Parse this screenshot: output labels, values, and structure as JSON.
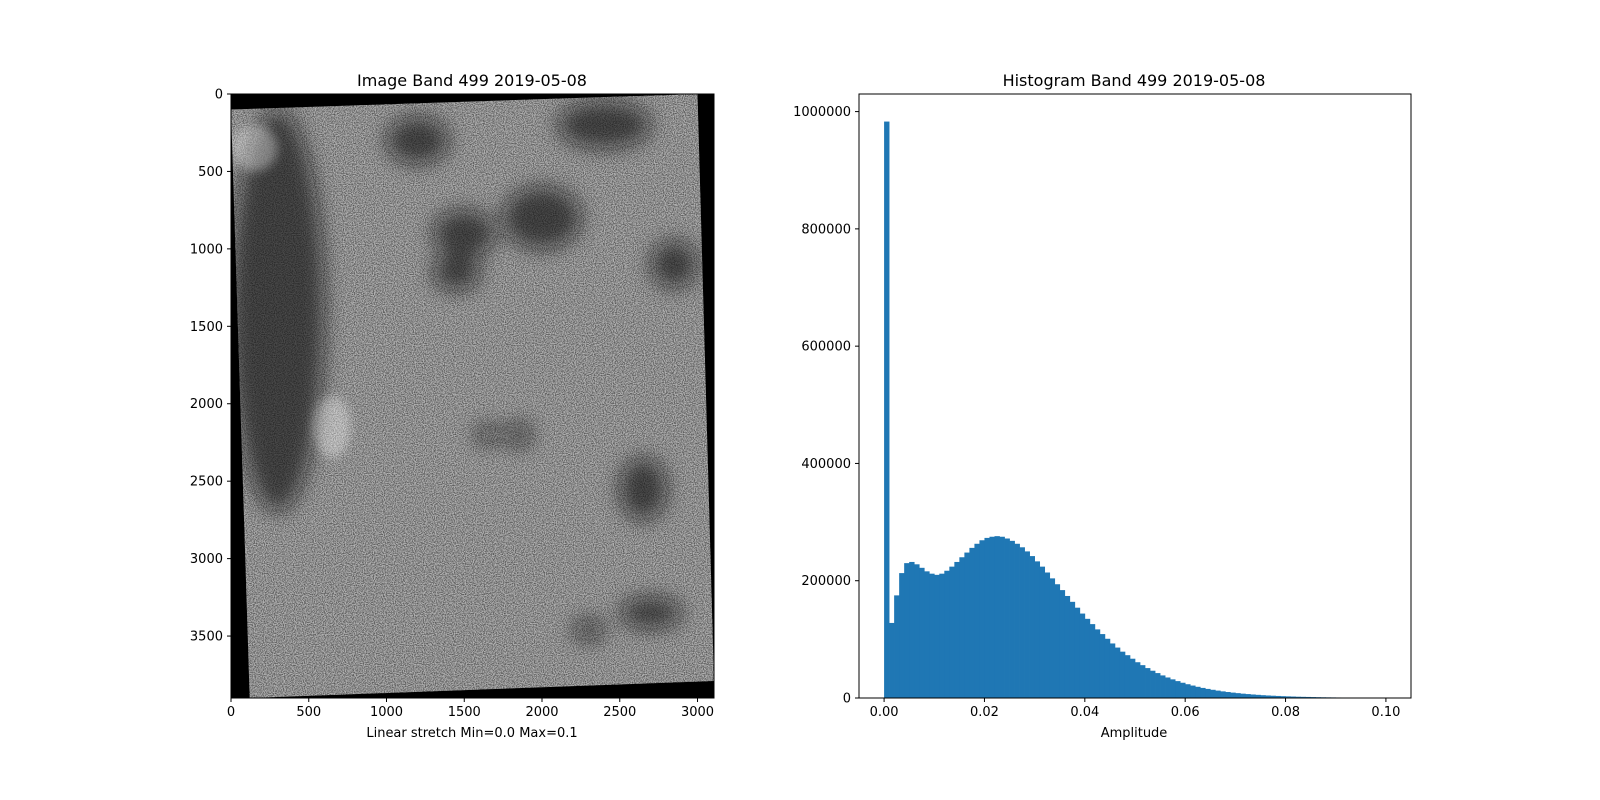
{
  "figure": {
    "background": "#ffffff"
  },
  "chart_data": [
    {
      "type": "heatmap",
      "title": "Image Band 499 2019-05-08",
      "xlabel": "Linear stretch Min=0.0 Max=0.1",
      "ylabel": "",
      "xlim": [
        0,
        3106
      ],
      "ylim": [
        3900,
        0
      ],
      "xticks": [
        0,
        500,
        1000,
        1500,
        2000,
        2500,
        3000
      ],
      "yticks": [
        0,
        500,
        1000,
        1500,
        2000,
        2500,
        3000,
        3500
      ],
      "xtick_labels": [
        "0",
        "500",
        "1000",
        "1500",
        "2000",
        "2500",
        "3000"
      ],
      "ytick_labels": [
        "0",
        "500",
        "1000",
        "1500",
        "2000",
        "2500",
        "3000",
        "3500"
      ],
      "colormap": "gray",
      "stretch_min": 0.0,
      "stretch_max": 0.1,
      "footprint_corners": [
        [
          0,
          100
        ],
        [
          3000,
          0
        ],
        [
          3106,
          3790
        ],
        [
          120,
          3900
        ]
      ],
      "dark_regions": [
        {
          "cx": 300,
          "cy": 1400,
          "rx": 300,
          "ry": 1300
        },
        {
          "cx": 2400,
          "cy": 200,
          "rx": 300,
          "ry": 150
        },
        {
          "cx": 1200,
          "cy": 300,
          "rx": 200,
          "ry": 150
        },
        {
          "cx": 1500,
          "cy": 900,
          "rx": 200,
          "ry": 150
        },
        {
          "cx": 2000,
          "cy": 800,
          "rx": 250,
          "ry": 200
        },
        {
          "cx": 1450,
          "cy": 1150,
          "rx": 150,
          "ry": 120
        },
        {
          "cx": 2850,
          "cy": 1100,
          "rx": 150,
          "ry": 150
        },
        {
          "cx": 2650,
          "cy": 2550,
          "rx": 150,
          "ry": 200
        },
        {
          "cx": 2700,
          "cy": 3350,
          "rx": 200,
          "ry": 100
        },
        {
          "cx": 2300,
          "cy": 3460,
          "rx": 100,
          "ry": 70
        },
        {
          "cx": 1650,
          "cy": 2200,
          "rx": 80,
          "ry": 60
        },
        {
          "cx": 1850,
          "cy": 2200,
          "rx": 80,
          "ry": 80
        }
      ],
      "bright_regions": [
        {
          "cx": 150,
          "cy": 350,
          "rx": 150,
          "ry": 150
        },
        {
          "cx": 650,
          "cy": 2150,
          "rx": 120,
          "ry": 200
        }
      ]
    },
    {
      "type": "bar",
      "title": "Histogram Band 499 2019-05-08",
      "xlabel": "Amplitude",
      "ylabel": "",
      "xlim": [
        -0.005,
        0.105
      ],
      "ylim": [
        0,
        1030000
      ],
      "xticks": [
        0.0,
        0.02,
        0.04,
        0.06,
        0.08,
        0.1
      ],
      "yticks": [
        0,
        200000,
        400000,
        600000,
        800000,
        1000000
      ],
      "xtick_labels": [
        "0.00",
        "0.02",
        "0.04",
        "0.06",
        "0.08",
        "0.10"
      ],
      "ytick_labels": [
        "0",
        "200000",
        "400000",
        "600000",
        "800000",
        "1000000"
      ],
      "bar_color": "#1f77b4",
      "bin_start": 0.0,
      "bin_width": 0.001,
      "counts": [
        983000,
        128000,
        175000,
        213000,
        230000,
        232000,
        228000,
        222000,
        216000,
        212000,
        210000,
        212000,
        217000,
        224000,
        232000,
        240000,
        248000,
        256000,
        263000,
        269000,
        273000,
        275000,
        276000,
        275000,
        272000,
        268000,
        263000,
        257000,
        250000,
        242000,
        233000,
        224000,
        214000,
        204000,
        194000,
        184000,
        174000,
        164000,
        154000,
        144000,
        135000,
        126000,
        117000,
        109000,
        101000,
        93000,
        86000,
        79000,
        73000,
        67000,
        61000,
        56000,
        51000,
        46500,
        42500,
        38500,
        35000,
        31800,
        28800,
        26000,
        23500,
        21200,
        19100,
        17200,
        15500,
        14000,
        12600,
        11300,
        10200,
        9200,
        8300,
        7400,
        6700,
        6000,
        5400,
        4800,
        4300,
        3900,
        3500,
        3100,
        2800,
        2500,
        2200,
        2000,
        1800,
        1600,
        1400,
        1250,
        1100,
        1000,
        880,
        780,
        690,
        610,
        540,
        480,
        420,
        370,
        330,
        290
      ]
    }
  ]
}
